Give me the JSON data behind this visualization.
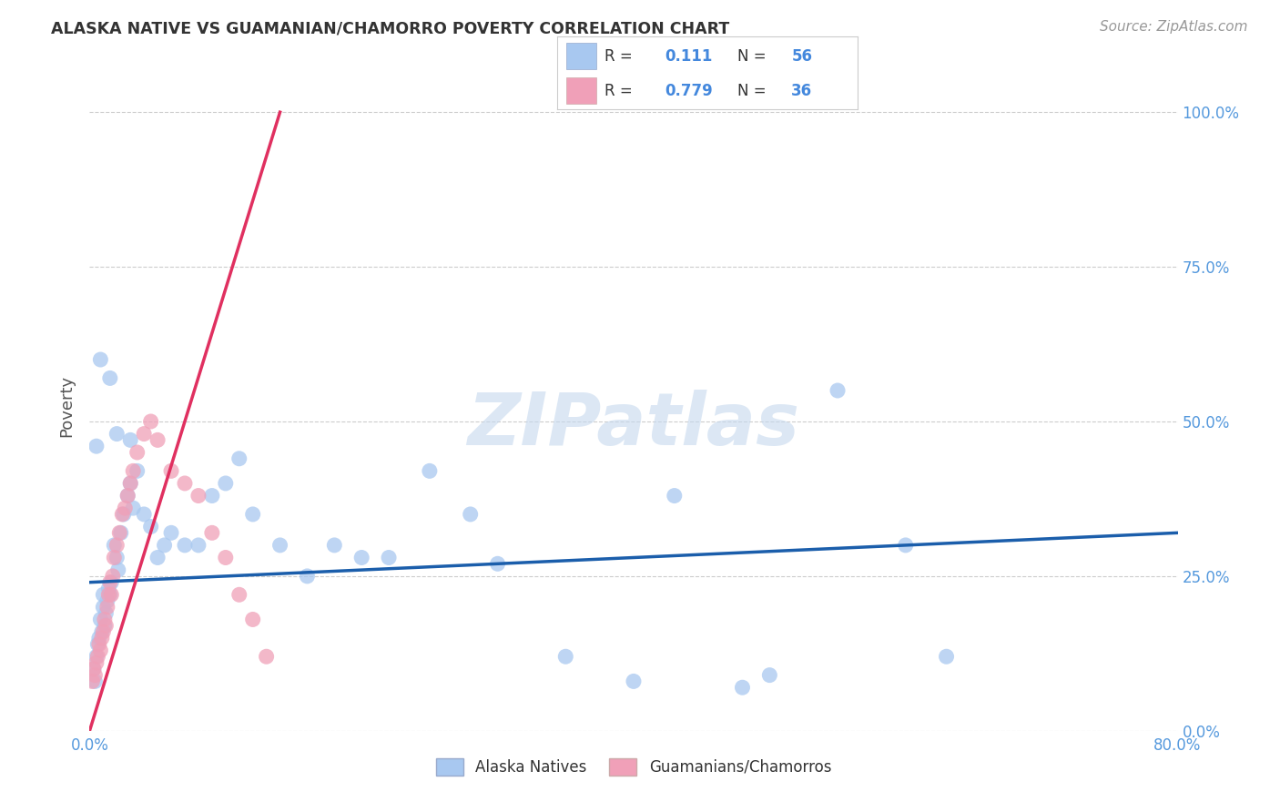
{
  "title": "ALASKA NATIVE VS GUAMANIAN/CHAMORRO POVERTY CORRELATION CHART",
  "source": "Source: ZipAtlas.com",
  "ylabel": "Poverty",
  "ytick_values": [
    0,
    25,
    50,
    75,
    100
  ],
  "xlim": [
    0,
    80
  ],
  "ylim": [
    0,
    105
  ],
  "watermark": "ZIPatlas",
  "legend_R1": "0.111",
  "legend_N1": "56",
  "legend_R2": "0.779",
  "legend_N2": "36",
  "blue_color": "#A8C8F0",
  "pink_color": "#F0A0B8",
  "line_blue": "#1B5EAB",
  "line_pink": "#E03060",
  "alaska_natives_x": [
    0.3,
    0.4,
    0.5,
    0.6,
    0.7,
    0.8,
    0.9,
    1.0,
    1.0,
    1.1,
    1.2,
    1.3,
    1.4,
    1.5,
    1.6,
    1.8,
    2.0,
    2.1,
    2.3,
    2.5,
    2.8,
    3.0,
    3.2,
    3.5,
    4.0,
    4.5,
    5.0,
    5.5,
    6.0,
    7.0,
    8.0,
    9.0,
    10.0,
    11.0,
    12.0,
    14.0,
    16.0,
    18.0,
    20.0,
    22.0,
    25.0,
    28.0,
    30.0,
    35.0,
    40.0,
    43.0,
    48.0,
    50.0,
    55.0,
    60.0,
    63.0,
    0.5,
    0.8,
    1.5,
    2.0,
    3.0
  ],
  "alaska_natives_y": [
    10.0,
    8.0,
    12.0,
    14.0,
    15.0,
    18.0,
    16.0,
    20.0,
    22.0,
    17.0,
    19.0,
    21.0,
    23.0,
    22.0,
    24.0,
    30.0,
    28.0,
    26.0,
    32.0,
    35.0,
    38.0,
    40.0,
    36.0,
    42.0,
    35.0,
    33.0,
    28.0,
    30.0,
    32.0,
    30.0,
    30.0,
    38.0,
    40.0,
    44.0,
    35.0,
    30.0,
    25.0,
    30.0,
    28.0,
    28.0,
    42.0,
    35.0,
    27.0,
    12.0,
    8.0,
    38.0,
    7.0,
    9.0,
    55.0,
    30.0,
    12.0,
    46.0,
    60.0,
    57.0,
    48.0,
    47.0
  ],
  "guamanian_x": [
    0.2,
    0.3,
    0.4,
    0.5,
    0.6,
    0.7,
    0.8,
    0.9,
    1.0,
    1.1,
    1.2,
    1.3,
    1.4,
    1.5,
    1.6,
    1.7,
    1.8,
    2.0,
    2.2,
    2.4,
    2.6,
    2.8,
    3.0,
    3.2,
    3.5,
    4.0,
    4.5,
    5.0,
    6.0,
    7.0,
    8.0,
    9.0,
    10.0,
    11.0,
    12.0,
    13.0
  ],
  "guamanian_y": [
    8.0,
    10.0,
    9.0,
    11.0,
    12.0,
    14.0,
    13.0,
    15.0,
    16.0,
    18.0,
    17.0,
    20.0,
    22.0,
    24.0,
    22.0,
    25.0,
    28.0,
    30.0,
    32.0,
    35.0,
    36.0,
    38.0,
    40.0,
    42.0,
    45.0,
    48.0,
    50.0,
    47.0,
    42.0,
    40.0,
    38.0,
    32.0,
    28.0,
    22.0,
    18.0,
    12.0
  ],
  "blue_line_x": [
    0.0,
    80.0
  ],
  "blue_line_y": [
    24.0,
    32.0
  ],
  "pink_line_x": [
    0.0,
    14.0
  ],
  "pink_line_y": [
    0.0,
    100.0
  ]
}
